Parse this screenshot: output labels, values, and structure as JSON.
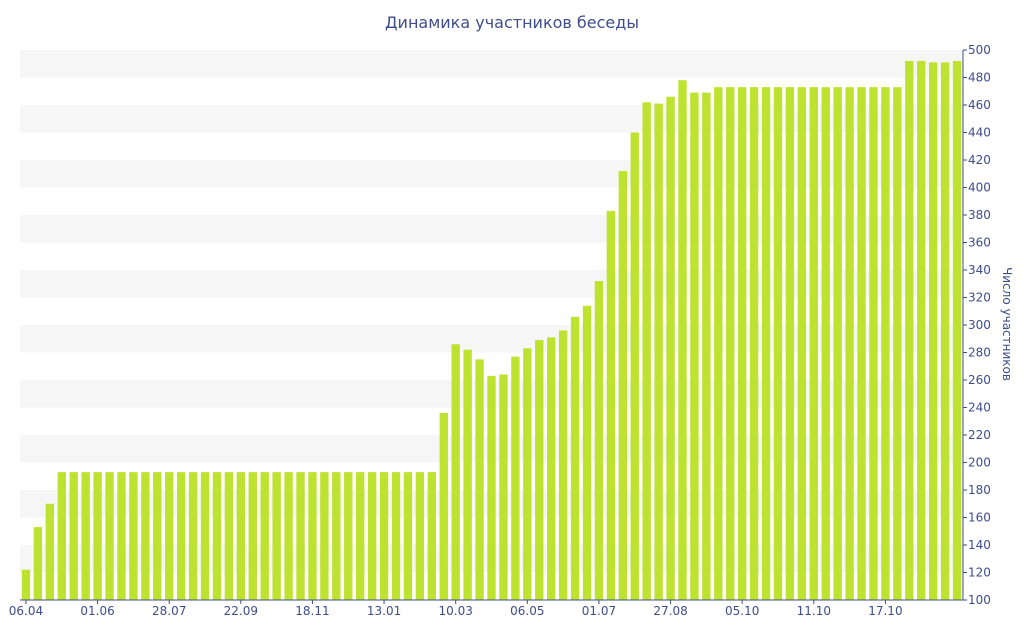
{
  "chart_data": {
    "type": "bar",
    "title": "Динамика участников беседы",
    "xlabel": "",
    "ylabel": "Число участников",
    "ylim": [
      100,
      500
    ],
    "yticks": [
      100,
      120,
      140,
      160,
      180,
      200,
      220,
      240,
      260,
      280,
      300,
      320,
      340,
      360,
      380,
      400,
      420,
      440,
      460,
      480,
      500
    ],
    "y_axis_position": "right",
    "grid": "alternating horizontal bands",
    "xtick_labels": [
      {
        "index": 0,
        "label": "06.04"
      },
      {
        "index": 6,
        "label": "01.06"
      },
      {
        "index": 12,
        "label": "28.07"
      },
      {
        "index": 18,
        "label": "22.09"
      },
      {
        "index": 24,
        "label": "18.11"
      },
      {
        "index": 30,
        "label": "13.01"
      },
      {
        "index": 36,
        "label": "10.03"
      },
      {
        "index": 42,
        "label": "06.05"
      },
      {
        "index": 48,
        "label": "01.07"
      },
      {
        "index": 54,
        "label": "27.08"
      },
      {
        "index": 60,
        "label": "05.10"
      },
      {
        "index": 66,
        "label": "11.10"
      },
      {
        "index": 72,
        "label": "17.10"
      }
    ],
    "values": [
      122,
      153,
      170,
      193,
      193,
      193,
      193,
      193,
      193,
      193,
      193,
      193,
      193,
      193,
      193,
      193,
      193,
      193,
      193,
      193,
      193,
      193,
      193,
      193,
      193,
      193,
      193,
      193,
      193,
      193,
      193,
      193,
      193,
      193,
      193,
      236,
      286,
      282,
      275,
      263,
      264,
      277,
      283,
      289,
      291,
      296,
      306,
      314,
      332,
      383,
      412,
      440,
      462,
      461,
      466,
      478,
      469,
      469,
      473,
      473,
      473,
      473,
      473,
      473,
      473,
      473,
      473,
      473,
      473,
      473,
      473,
      473,
      473,
      473,
      492,
      492,
      491,
      491,
      492
    ],
    "colors": {
      "bar": "#bde22f",
      "band": "#f6f6f6",
      "text": "#3e4d8b",
      "axis": "#3e4d8b"
    }
  }
}
